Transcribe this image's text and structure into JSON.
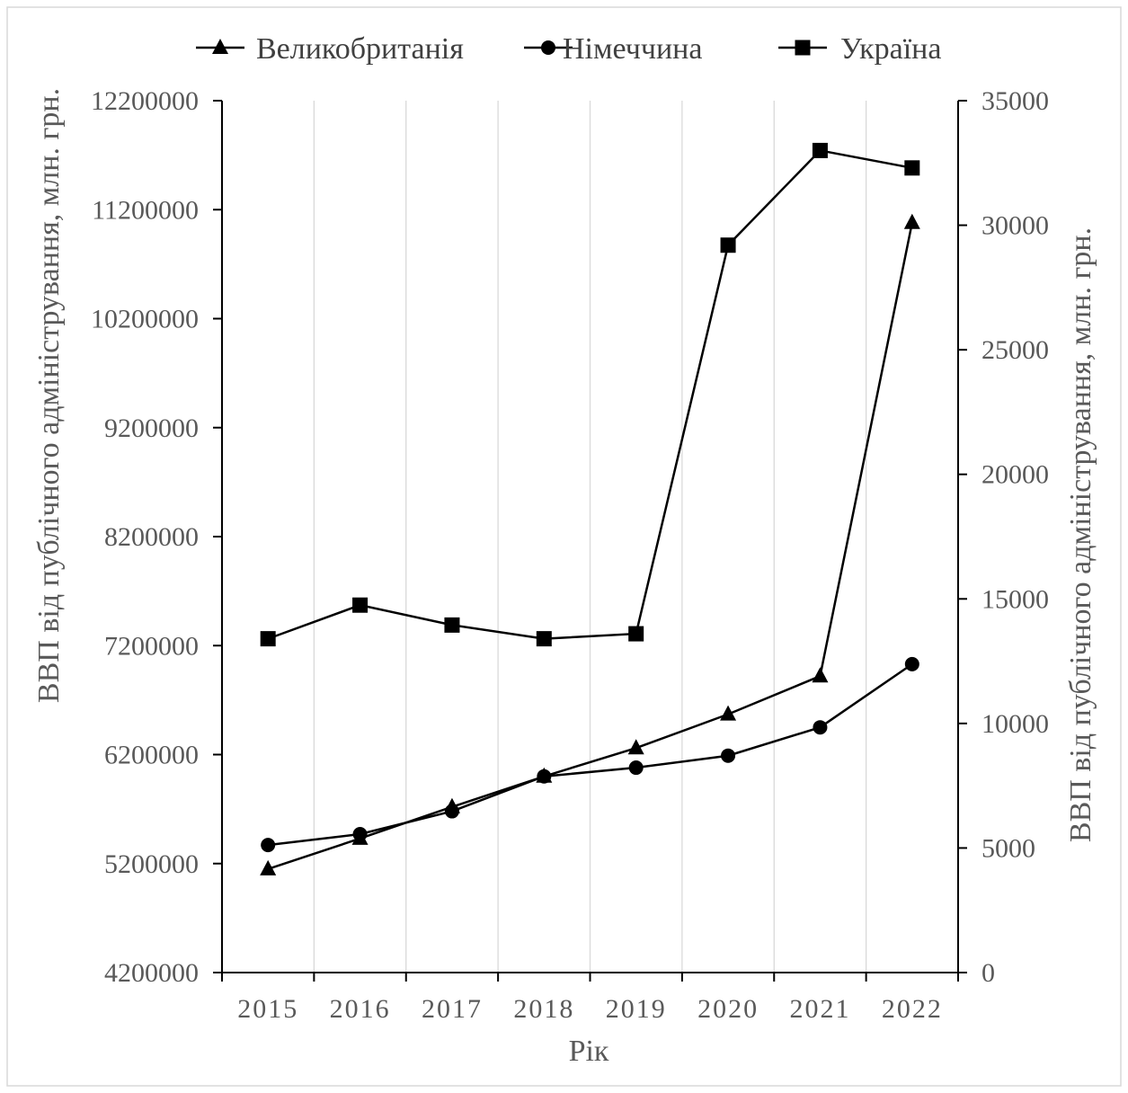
{
  "chart_data": {
    "type": "line",
    "title": "",
    "xlabel": "Рік",
    "ylabel_left": "ВВП від публічного адміністрування, млн. грн.",
    "ylabel_right": "ВВП від публічного адміністрування, млн. грн.",
    "categories": [
      "2015",
      "2016",
      "2017",
      "2018",
      "2019",
      "2020",
      "2021",
      "2022"
    ],
    "y_left": {
      "range": [
        4200000,
        12200000
      ],
      "ticks": [
        "4200000",
        "5200000",
        "6200000",
        "7200000",
        "8200000",
        "9200000",
        "10200000",
        "11200000",
        "12200000"
      ]
    },
    "y_right": {
      "range": [
        0,
        35000
      ],
      "ticks": [
        "0",
        "5000",
        "10000",
        "15000",
        "20000",
        "25000",
        "30000",
        "35000"
      ]
    },
    "grid": "vertical",
    "legend": "top",
    "series": [
      {
        "name": "Великобританія",
        "axis": "left",
        "marker": "triangle",
        "values": [
          5150000,
          5430000,
          5720000,
          6000000,
          6260000,
          6570000,
          6920000,
          11080000
        ]
      },
      {
        "name": "Німеччина",
        "axis": "left",
        "marker": "circle",
        "values": [
          5370000,
          5470000,
          5680000,
          6000000,
          6080000,
          6190000,
          6450000,
          7030000
        ]
      },
      {
        "name": "Україна",
        "axis": "right",
        "marker": "square",
        "values": [
          13400,
          14750,
          13950,
          13400,
          13600,
          29200,
          33000,
          32300
        ]
      }
    ]
  }
}
